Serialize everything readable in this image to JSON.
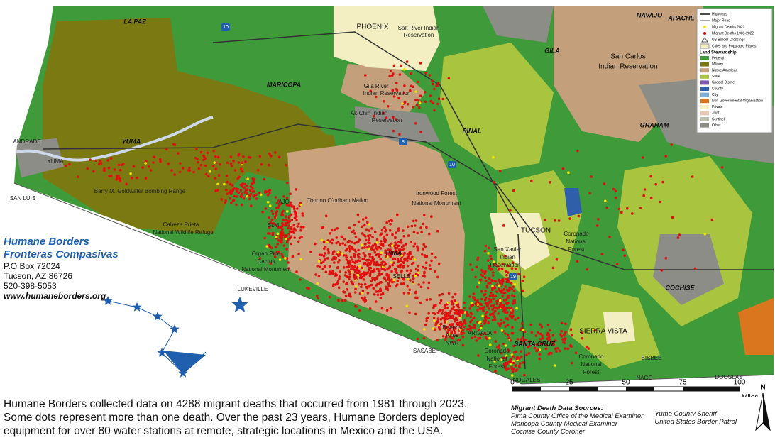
{
  "map": {
    "labels": [
      "LA PAZ",
      "PHOENIX",
      "Salt River Indian",
      "Reservation",
      "NAVAJO",
      "APACHE",
      "GILA",
      "San Carlos",
      "Indian Reservation",
      "MARICOPA",
      "Gila River",
      "Indian Reservation",
      "Ak-Chin Indian",
      "Reservation",
      "PINAL",
      "GRAHAM",
      "YUMA",
      "ANDRADE",
      "YUMA",
      "SAN LUIS",
      "Barry M. Goldwater Bombing Range",
      "AJO",
      "Tohono O'odham Nation",
      "Ironwood Forest",
      "National Monument",
      "Cabeza Prieta",
      "National Wildlife Refuge",
      "BLM",
      "Organ Pipe",
      "Cactus",
      "National Monument",
      "TUCSON",
      "Coronado",
      "National",
      "Forest",
      "PIMA",
      "San Xavier",
      "Indian",
      "Reservation",
      "SELLS",
      "LUKEVILLE",
      "COCHISE",
      "Buenos",
      "Aires",
      "NWR",
      "ARIVACA",
      "SANTA CRUZ",
      "SIERRA VISTA",
      "SASABE",
      "Coronado",
      "National",
      "Forest",
      "Coronado",
      "National",
      "Forest",
      "BISBEE",
      "NOGALES",
      "NACO",
      "DOUGLAS"
    ],
    "highways": [
      "10",
      "8",
      "10",
      "19"
    ],
    "legend": {
      "items": [
        "Highways",
        "Major Road",
        "Migrant Deaths 2023",
        "Migrant Deaths 1981-2022",
        "US Border Crossings",
        "Cities and Populated Places"
      ],
      "land_title": "Land Stewardship",
      "land": [
        {
          "name": "Federal",
          "color": "#3f9a3a"
        },
        {
          "name": "Military",
          "color": "#7b7a12"
        },
        {
          "name": "Native American",
          "color": "#c3a07b"
        },
        {
          "name": "State",
          "color": "#a9c43e"
        },
        {
          "name": "Special District",
          "color": "#7d5ab0"
        },
        {
          "name": "County",
          "color": "#2f5fa8"
        },
        {
          "name": "City",
          "color": "#7ab0d8"
        },
        {
          "name": "Non-Governmental Organization",
          "color": "#d9761e"
        },
        {
          "name": "Private",
          "color": "#f3efc3"
        },
        {
          "name": "Joint",
          "color": "#e8c8b0"
        },
        {
          "name": "Sentinel",
          "color": "#bdbdb0"
        },
        {
          "name": "Other",
          "color": "#8d8d88"
        }
      ]
    },
    "scale": {
      "ticks": [
        "0",
        "25",
        "50",
        "75",
        "100"
      ],
      "unit": "Miles"
    },
    "north": "N"
  },
  "organization": {
    "name": "Humane Borders",
    "name_es": "Fronteras Compasivas",
    "address1": "P.O Box 72024",
    "address2": "Tucson, AZ 86726",
    "phone": "520-398-5053",
    "website": "www.humaneborders.org"
  },
  "caption": [
    "Humane Borders collected data on 4288 migrant deaths that occurred from 1981 through 2023.",
    "Some dots represent more than one death. Over the past 23 years, Humane Borders deployed",
    "equipment for over 80 water stations at remote, strategic locations in Mexico and the USA."
  ],
  "sources": {
    "title": "Migrant Death Data Sources:",
    "items": [
      "Pima County Office of the Medical Examiner",
      "Maricopa County Medical Examiner",
      "Cochise County Coroner",
      "Yuma County Sheriff",
      "United States Border Patrol"
    ]
  }
}
